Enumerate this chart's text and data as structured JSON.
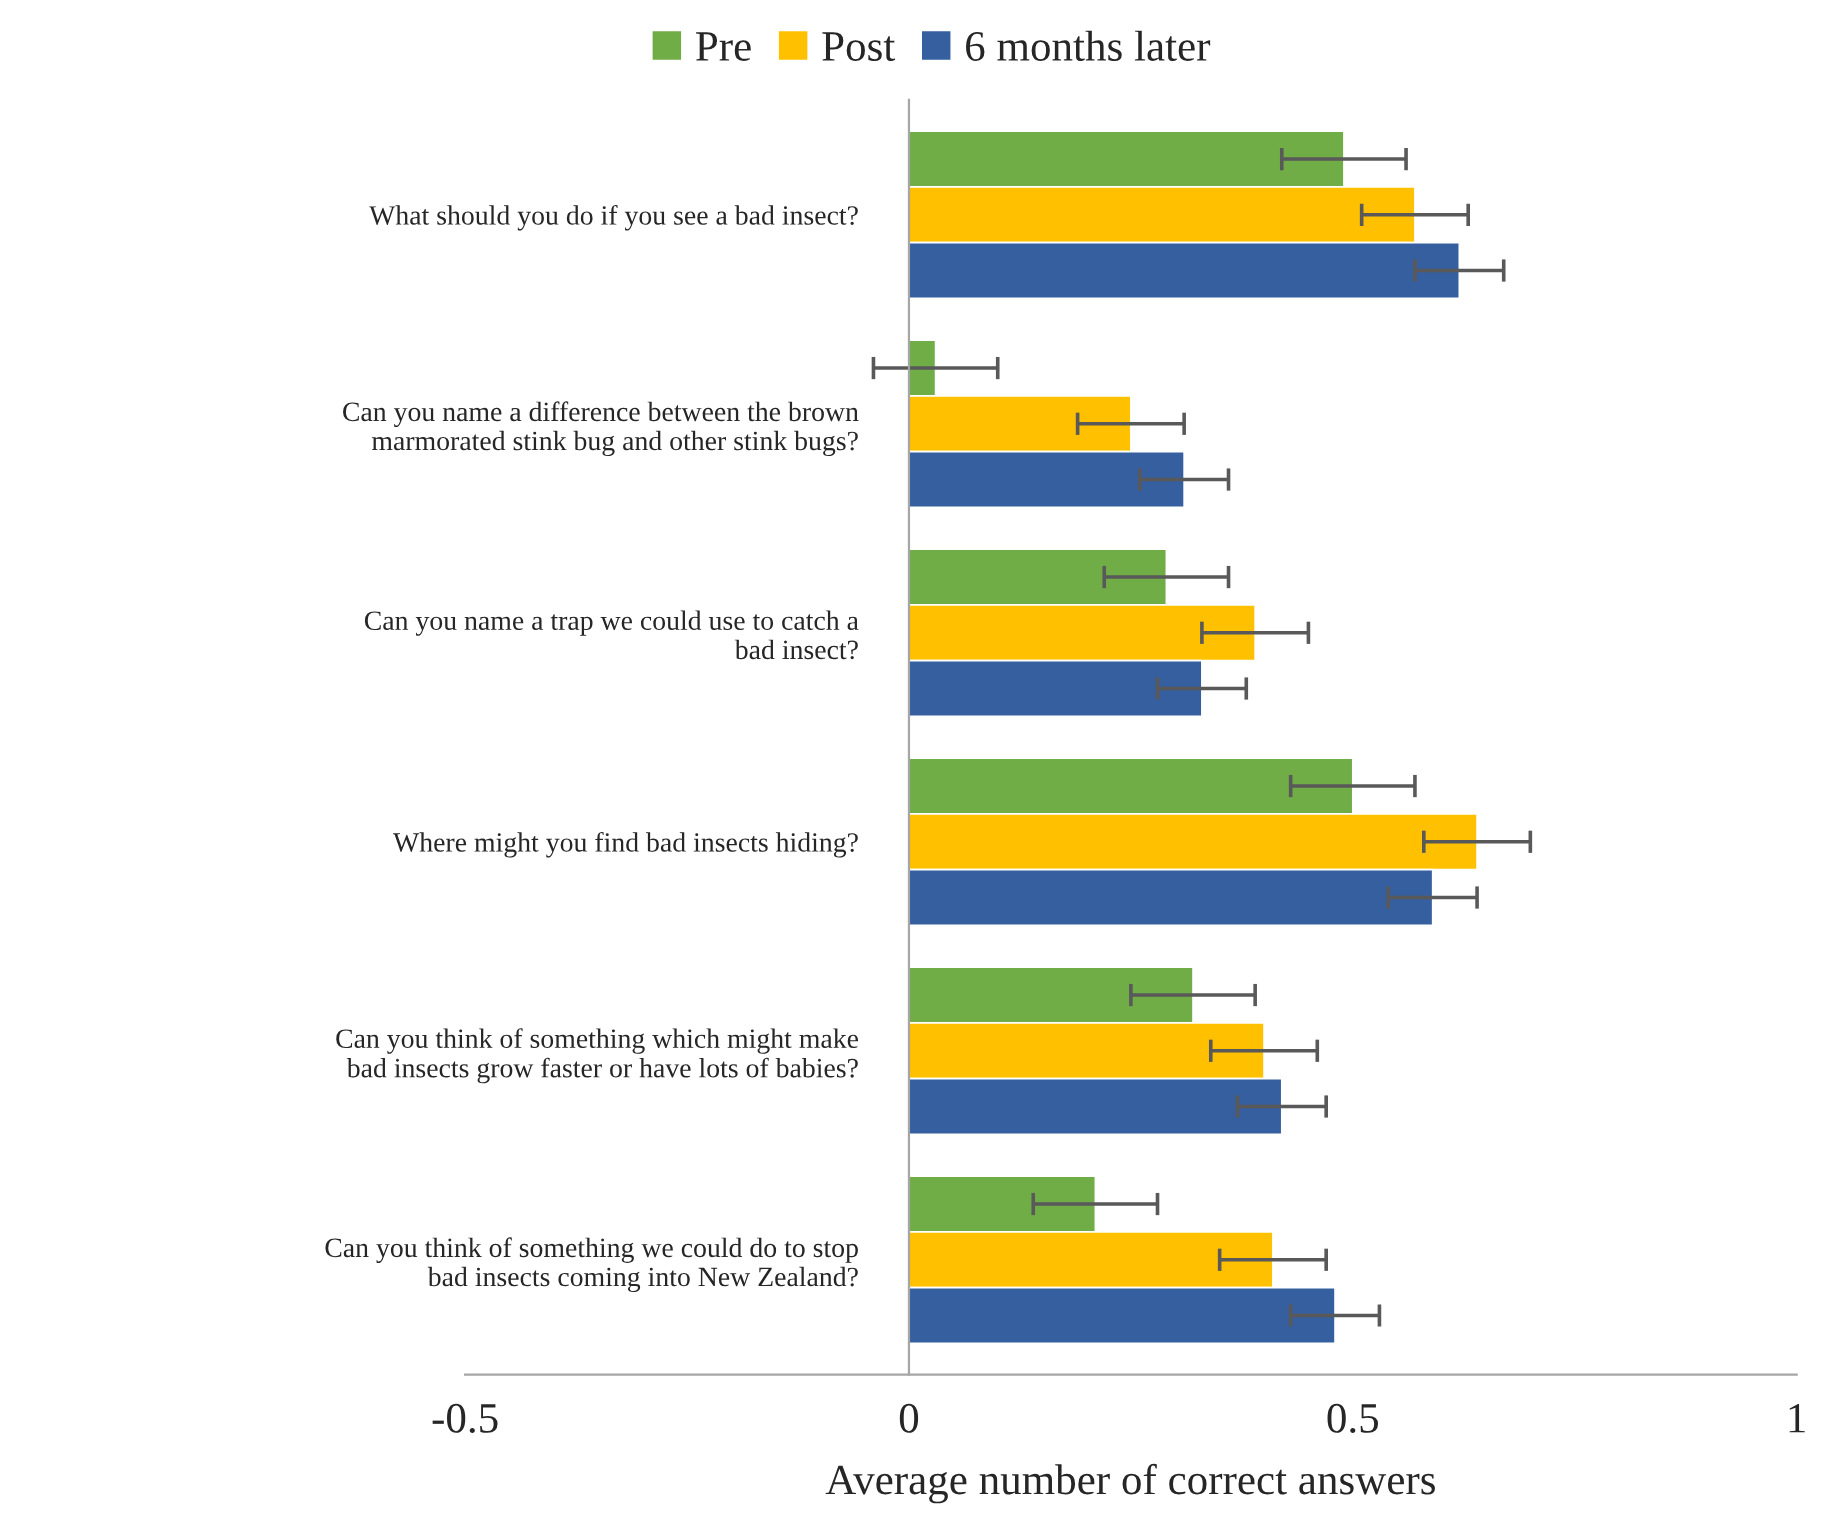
{
  "chart_data": {
    "type": "bar",
    "orientation": "horizontal",
    "xlabel": "Average number of correct answers",
    "categories": [
      "What should you do if you see a bad insect?",
      "Can you name a difference between the brown\nmarmorated stink bug and other stink bugs?",
      "Can you name a trap we could use to catch a\nbad insect?",
      "Where might you find bad insects hiding?",
      "Can you think of something which might make\nbad insects grow faster or have lots of babies?",
      "Can you think of something we could do to stop\nbad insects coming into New Zealand?"
    ],
    "series": [
      {
        "name": "Pre",
        "color": "#70ad47",
        "values": [
          0.49,
          0.03,
          0.29,
          0.5,
          0.32,
          0.21
        ],
        "errors": [
          0.07,
          0.07,
          0.07,
          0.07,
          0.07,
          0.07
        ]
      },
      {
        "name": "Post",
        "color": "#ffc000",
        "values": [
          0.57,
          0.25,
          0.39,
          0.64,
          0.4,
          0.41
        ],
        "errors": [
          0.06,
          0.06,
          0.06,
          0.06,
          0.06,
          0.06
        ]
      },
      {
        "name": "6 months later",
        "color": "#365f9f",
        "values": [
          0.62,
          0.31,
          0.33,
          0.59,
          0.42,
          0.48
        ],
        "errors": [
          0.05,
          0.05,
          0.05,
          0.05,
          0.05,
          0.05
        ]
      }
    ],
    "xlim": [
      -0.5,
      1
    ],
    "xticks": [
      -0.5,
      0,
      0.5,
      1
    ],
    "grid": false,
    "legend": "top"
  }
}
